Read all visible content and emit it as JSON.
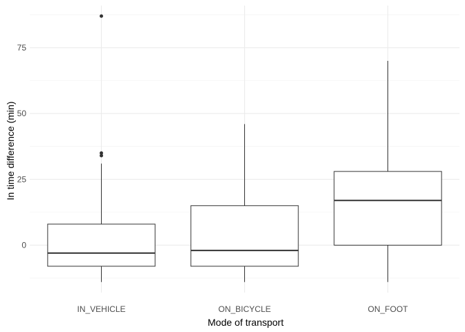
{
  "chart_data": {
    "type": "boxplot",
    "xlabel": "Mode of transport",
    "ylabel": "In time difference (min)",
    "categories": [
      "IN_VEHICLE",
      "ON_BICYCLE",
      "ON_FOOT"
    ],
    "ylim": [
      -18,
      91
    ],
    "yticks": [
      0,
      25,
      50,
      75
    ],
    "grid": true,
    "boxes": [
      {
        "category": "IN_VEHICLE",
        "whisker_low": -14,
        "q1": -8,
        "median": -3,
        "q3": 8,
        "whisker_high": 31,
        "outliers": [
          34,
          35,
          87
        ]
      },
      {
        "category": "ON_BICYCLE",
        "whisker_low": -14,
        "q1": -8,
        "median": -2,
        "q3": 15,
        "whisker_high": 46,
        "outliers": []
      },
      {
        "category": "ON_FOOT",
        "whisker_low": -14,
        "q1": 0,
        "median": 17,
        "q3": 28,
        "whisker_high": 70,
        "outliers": []
      }
    ]
  }
}
